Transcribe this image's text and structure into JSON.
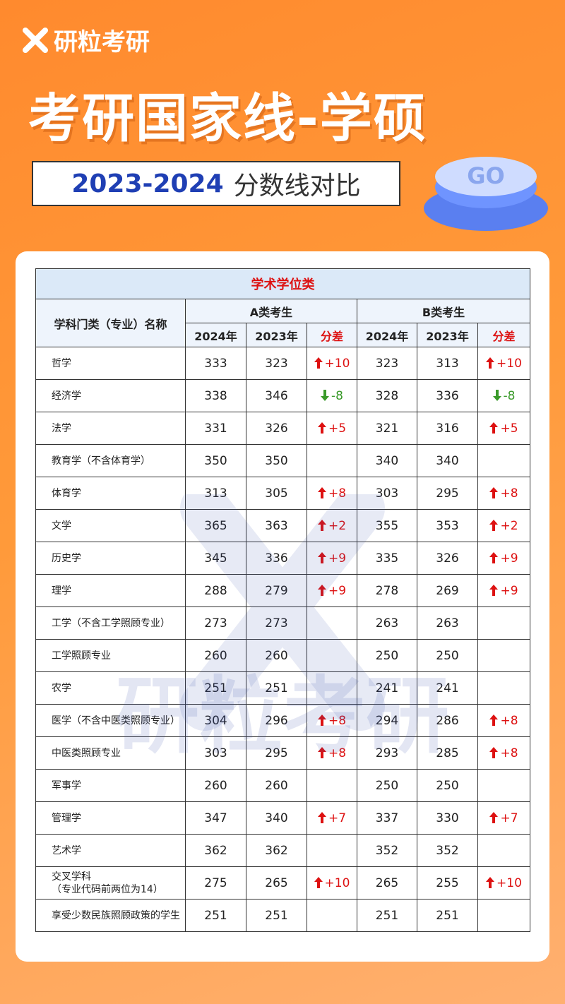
{
  "brand": "研粒考研",
  "header": {
    "title": "考研国家线-学硕",
    "years": "2023-2024",
    "subtitle": "分数线对比",
    "button": "GO"
  },
  "watermark": "研粒考研",
  "table": {
    "caption": "学术学位类",
    "name_header": "学科门类（专业）名称",
    "groups": [
      "A类考生",
      "B类考生"
    ],
    "columns": [
      "2024年",
      "2023年",
      "分差"
    ],
    "rows": [
      {
        "name": "哲学",
        "a": [
          333,
          323,
          "+10"
        ],
        "b": [
          323,
          313,
          "+10"
        ]
      },
      {
        "name": "经济学",
        "a": [
          338,
          346,
          "-8"
        ],
        "b": [
          328,
          336,
          "-8"
        ]
      },
      {
        "name": "法学",
        "a": [
          331,
          326,
          "+5"
        ],
        "b": [
          321,
          316,
          "+5"
        ]
      },
      {
        "name": "教育学（不含体育学）",
        "a": [
          350,
          350,
          null
        ],
        "b": [
          340,
          340,
          null
        ]
      },
      {
        "name": "体育学",
        "a": [
          313,
          305,
          "+8"
        ],
        "b": [
          303,
          295,
          "+8"
        ]
      },
      {
        "name": "文学",
        "a": [
          365,
          363,
          "+2"
        ],
        "b": [
          355,
          353,
          "+2"
        ]
      },
      {
        "name": "历史学",
        "a": [
          345,
          336,
          "+9"
        ],
        "b": [
          335,
          326,
          "+9"
        ]
      },
      {
        "name": "理学",
        "a": [
          288,
          279,
          "+9"
        ],
        "b": [
          278,
          269,
          "+9"
        ]
      },
      {
        "name": "工学（不含工学照顾专业）",
        "a": [
          273,
          273,
          null
        ],
        "b": [
          263,
          263,
          null
        ]
      },
      {
        "name": "工学照顾专业",
        "a": [
          260,
          260,
          null
        ],
        "b": [
          250,
          250,
          null
        ]
      },
      {
        "name": "农学",
        "a": [
          251,
          251,
          null
        ],
        "b": [
          241,
          241,
          null
        ]
      },
      {
        "name": "医学（不含中医类照顾专业）",
        "a": [
          304,
          296,
          "+8"
        ],
        "b": [
          294,
          286,
          "+8"
        ]
      },
      {
        "name": "中医类照顾专业",
        "a": [
          303,
          295,
          "+8"
        ],
        "b": [
          293,
          285,
          "+8"
        ]
      },
      {
        "name": "军事学",
        "a": [
          260,
          260,
          null
        ],
        "b": [
          250,
          250,
          null
        ]
      },
      {
        "name": "管理学",
        "a": [
          347,
          340,
          "+7"
        ],
        "b": [
          337,
          330,
          "+7"
        ]
      },
      {
        "name": "艺术学",
        "a": [
          362,
          362,
          null
        ],
        "b": [
          352,
          352,
          null
        ]
      },
      {
        "name": "交叉学科",
        "note": "（专业代码前两位为14）",
        "a": [
          275,
          265,
          "+10"
        ],
        "b": [
          265,
          255,
          "+10"
        ]
      },
      {
        "name": "享受少数民族照顾政策的学生",
        "a": [
          251,
          251,
          null
        ],
        "b": [
          251,
          251,
          null
        ]
      }
    ]
  }
}
